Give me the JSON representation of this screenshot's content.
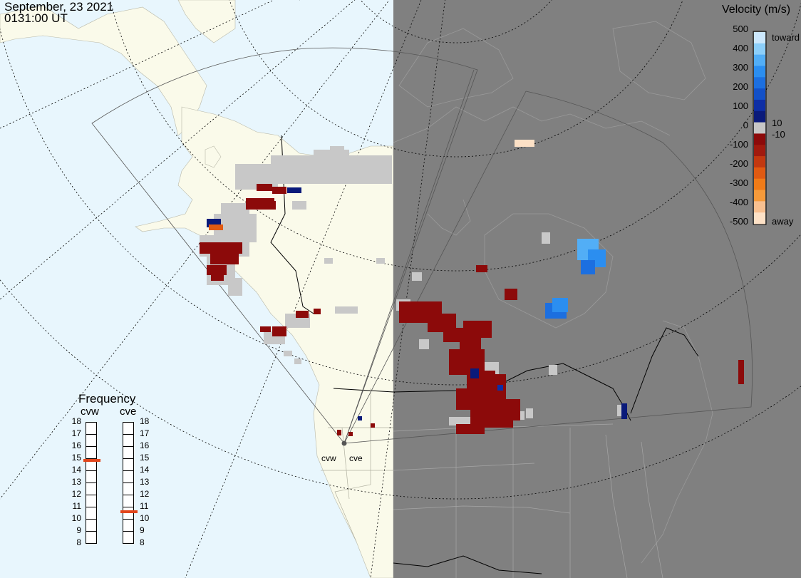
{
  "header": {
    "date": "September, 23 2021",
    "time": "0131:00 UT"
  },
  "frequency_panel": {
    "title": "Frequency",
    "columns": [
      {
        "label": "cvw",
        "value": 14.8
      },
      {
        "label": "cve",
        "value": 10.6
      }
    ],
    "ticks": [
      "18",
      "17",
      "16",
      "15",
      "14",
      "13",
      "12",
      "11",
      "10",
      "9",
      "8"
    ]
  },
  "colorbar": {
    "title": "Velocity (m/s)",
    "ticks": [
      "500",
      "400",
      "300",
      "200",
      "100",
      "0",
      "-100",
      "-200",
      "-300",
      "-400",
      "-500"
    ],
    "side_labels": {
      "toward": "toward",
      "pos": "10",
      "neg": "-10",
      "away": "away"
    },
    "colors": [
      "#fde1c6",
      "#f8c090",
      "#f69a3a",
      "#f07b18",
      "#e05a12",
      "#c23810",
      "#a11a0e",
      "#8c0a0a",
      "#c7c7c7",
      "#0a1a7a",
      "#0e2ea5",
      "#1250c8",
      "#1c6fe0",
      "#2b8ef0",
      "#52aef6",
      "#8ccffa",
      "#cce8fd"
    ]
  },
  "radars": [
    {
      "name": "cvw"
    },
    {
      "name": "cve"
    }
  ],
  "map": {
    "ocean_color": "#e8f6fd",
    "land_color": "#fafaea",
    "night_color": "#808080",
    "ground_scatter_color": "#c8c8c8"
  }
}
